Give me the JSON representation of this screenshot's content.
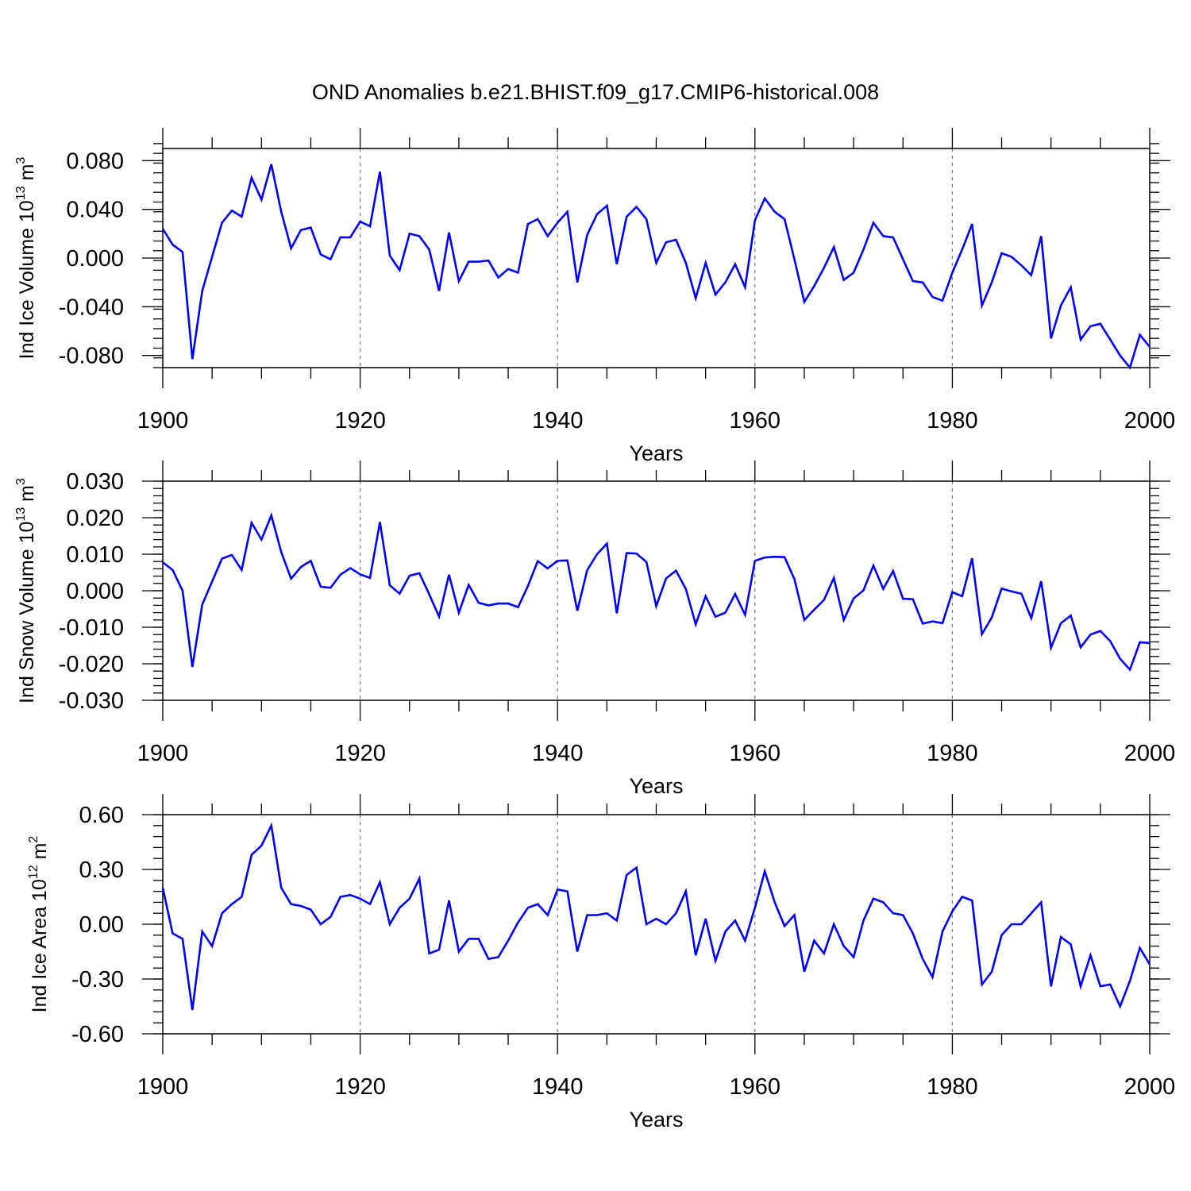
{
  "figure_title": "OND Anomalies b.e21.BHIST.f09_g17.CMIP6-historical.008",
  "chart_data": [
    {
      "type": "line",
      "title": "OND Anomalies b.e21.BHIST.f09_g17.CMIP6-historical.008",
      "xlabel": "Years",
      "ylabel": {
        "main": "Ind Ice Volume 10",
        "sup": "13",
        "unit": " m",
        "unit_sup": "3"
      },
      "xlim": [
        1900,
        2000
      ],
      "ylim": [
        -0.09,
        0.09
      ],
      "xticks": [
        1900,
        1920,
        1940,
        1960,
        1980,
        2000
      ],
      "xtick_labels": [
        "1900",
        "1920",
        "1940",
        "1960",
        "1980",
        "2000"
      ],
      "yticks": [
        -0.08,
        -0.04,
        0.0,
        0.04,
        0.08
      ],
      "ytick_labels": [
        "-0.080",
        "-0.040",
        "0.000",
        "0.040",
        "0.080"
      ],
      "grid": "x dashed",
      "line_color": "#0000ff",
      "x_start": 1900,
      "values": [
        0.024,
        0.011,
        0.005,
        -0.083,
        -0.027,
        0.001,
        0.029,
        0.039,
        0.034,
        0.066,
        0.048,
        0.077,
        0.038,
        0.008,
        0.023,
        0.025,
        0.003,
        -0.001,
        0.017,
        0.017,
        0.03,
        0.026,
        0.071,
        0.002,
        -0.01,
        0.02,
        0.018,
        0.007,
        -0.027,
        0.021,
        -0.019,
        -0.003,
        -0.003,
        -0.002,
        -0.016,
        -0.009,
        -0.012,
        0.028,
        0.032,
        0.018,
        0.029,
        0.038,
        -0.02,
        0.019,
        0.036,
        0.043,
        -0.005,
        0.034,
        0.042,
        0.032,
        -0.004,
        0.013,
        0.015,
        -0.004,
        -0.033,
        -0.004,
        -0.03,
        -0.02,
        -0.005,
        -0.024,
        0.031,
        0.049,
        0.038,
        0.032,
        -0.001,
        -0.036,
        -0.023,
        -0.008,
        0.009,
        -0.018,
        -0.012,
        0.007,
        0.029,
        0.018,
        0.017,
        -0.001,
        -0.019,
        -0.02,
        -0.032,
        -0.035,
        -0.012,
        0.007,
        0.028,
        -0.039,
        -0.02,
        0.004,
        0.001,
        -0.006,
        -0.014,
        0.018,
        -0.066,
        -0.039,
        -0.024,
        -0.067,
        -0.056,
        -0.054,
        -0.067,
        -0.08,
        -0.09,
        -0.063,
        -0.073
      ]
    },
    {
      "type": "line",
      "xlabel": "Years",
      "ylabel": {
        "main": "Ind Snow Volume 10",
        "sup": "13",
        "unit": " m",
        "unit_sup": "3"
      },
      "xlim": [
        1900,
        2000
      ],
      "ylim": [
        -0.03,
        0.03
      ],
      "xticks": [
        1900,
        1920,
        1940,
        1960,
        1980,
        2000
      ],
      "xtick_labels": [
        "1900",
        "1920",
        "1940",
        "1960",
        "1980",
        "2000"
      ],
      "yticks": [
        -0.03,
        -0.02,
        -0.01,
        0.0,
        0.01,
        0.02,
        0.03
      ],
      "ytick_labels": [
        "-0.030",
        "-0.020",
        "-0.010",
        "0.000",
        "0.010",
        "0.020",
        "0.030"
      ],
      "grid": "x dashed",
      "line_color": "#0000ff",
      "x_start": 1900,
      "values": [
        0.0078,
        0.0057,
        0.0,
        -0.0209,
        -0.0038,
        0.0025,
        0.0088,
        0.0098,
        0.0057,
        0.0186,
        0.014,
        0.0206,
        0.0106,
        0.0033,
        0.0065,
        0.0082,
        0.0011,
        0.0008,
        0.0044,
        0.0062,
        0.0045,
        0.0035,
        0.0188,
        0.0015,
        -0.0008,
        0.0041,
        0.0048,
        -0.001,
        -0.0071,
        0.0044,
        -0.006,
        0.0016,
        -0.0033,
        -0.004,
        -0.0035,
        -0.0035,
        -0.0045,
        0.0013,
        0.0081,
        0.0061,
        0.0082,
        0.0083,
        -0.0055,
        0.0056,
        0.01,
        0.0129,
        -0.0062,
        0.0103,
        0.0102,
        0.0079,
        -0.0042,
        0.0034,
        0.0055,
        0.0005,
        -0.0092,
        -0.0015,
        -0.0071,
        -0.006,
        -0.0009,
        -0.0066,
        0.0082,
        0.0091,
        0.0093,
        0.0092,
        0.0032,
        -0.008,
        -0.0052,
        -0.0025,
        0.0035,
        -0.008,
        -0.0021,
        0.0001,
        0.0069,
        0.0005,
        0.0054,
        -0.0022,
        -0.0023,
        -0.009,
        -0.0084,
        -0.0089,
        -0.0004,
        -0.0015,
        0.0089,
        -0.0119,
        -0.0073,
        0.0006,
        -0.0002,
        -0.0008,
        -0.0075,
        0.0026,
        -0.0156,
        -0.0089,
        -0.0068,
        -0.0155,
        -0.012,
        -0.011,
        -0.0138,
        -0.0186,
        -0.0216,
        -0.0141,
        -0.0143
      ]
    },
    {
      "type": "line",
      "xlabel": "Years",
      "ylabel": {
        "main": "Ind Ice Area 10",
        "sup": "12",
        "unit": " m",
        "unit_sup": "2"
      },
      "xlim": [
        1900,
        2000
      ],
      "ylim": [
        -0.6,
        0.6
      ],
      "xticks": [
        1900,
        1920,
        1940,
        1960,
        1980,
        2000
      ],
      "xtick_labels": [
        "1900",
        "1920",
        "1940",
        "1960",
        "1980",
        "2000"
      ],
      "yticks": [
        -0.6,
        -0.3,
        0.0,
        0.3,
        0.6
      ],
      "ytick_labels": [
        "-0.60",
        "-0.30",
        "0.00",
        "0.30",
        "0.60"
      ],
      "grid": "x dashed",
      "line_color": "#0000ff",
      "x_start": 1900,
      "values": [
        0.2,
        -0.05,
        -0.08,
        -0.47,
        -0.04,
        -0.12,
        0.06,
        0.11,
        0.15,
        0.38,
        0.43,
        0.54,
        0.2,
        0.11,
        0.1,
        0.08,
        0.0,
        0.04,
        0.15,
        0.16,
        0.14,
        0.11,
        0.23,
        0.0,
        0.09,
        0.14,
        0.25,
        -0.16,
        -0.14,
        0.13,
        -0.15,
        -0.08,
        -0.08,
        -0.19,
        -0.18,
        -0.09,
        0.01,
        0.09,
        0.11,
        0.05,
        0.19,
        0.18,
        -0.15,
        0.05,
        0.05,
        0.06,
        0.02,
        0.27,
        0.31,
        0.0,
        0.03,
        0.0,
        0.06,
        0.18,
        -0.17,
        0.03,
        -0.2,
        -0.04,
        0.02,
        -0.09,
        0.09,
        0.29,
        0.12,
        -0.01,
        0.05,
        -0.26,
        -0.09,
        -0.16,
        0.0,
        -0.12,
        -0.18,
        0.02,
        0.14,
        0.12,
        0.06,
        0.05,
        -0.05,
        -0.19,
        -0.29,
        -0.04,
        0.07,
        0.15,
        0.13,
        -0.33,
        -0.26,
        -0.06,
        0.0,
        0.0,
        0.06,
        0.12,
        -0.34,
        -0.07,
        -0.11,
        -0.34,
        -0.17,
        -0.34,
        -0.33,
        -0.45,
        -0.31,
        -0.13,
        -0.22
      ]
    }
  ]
}
